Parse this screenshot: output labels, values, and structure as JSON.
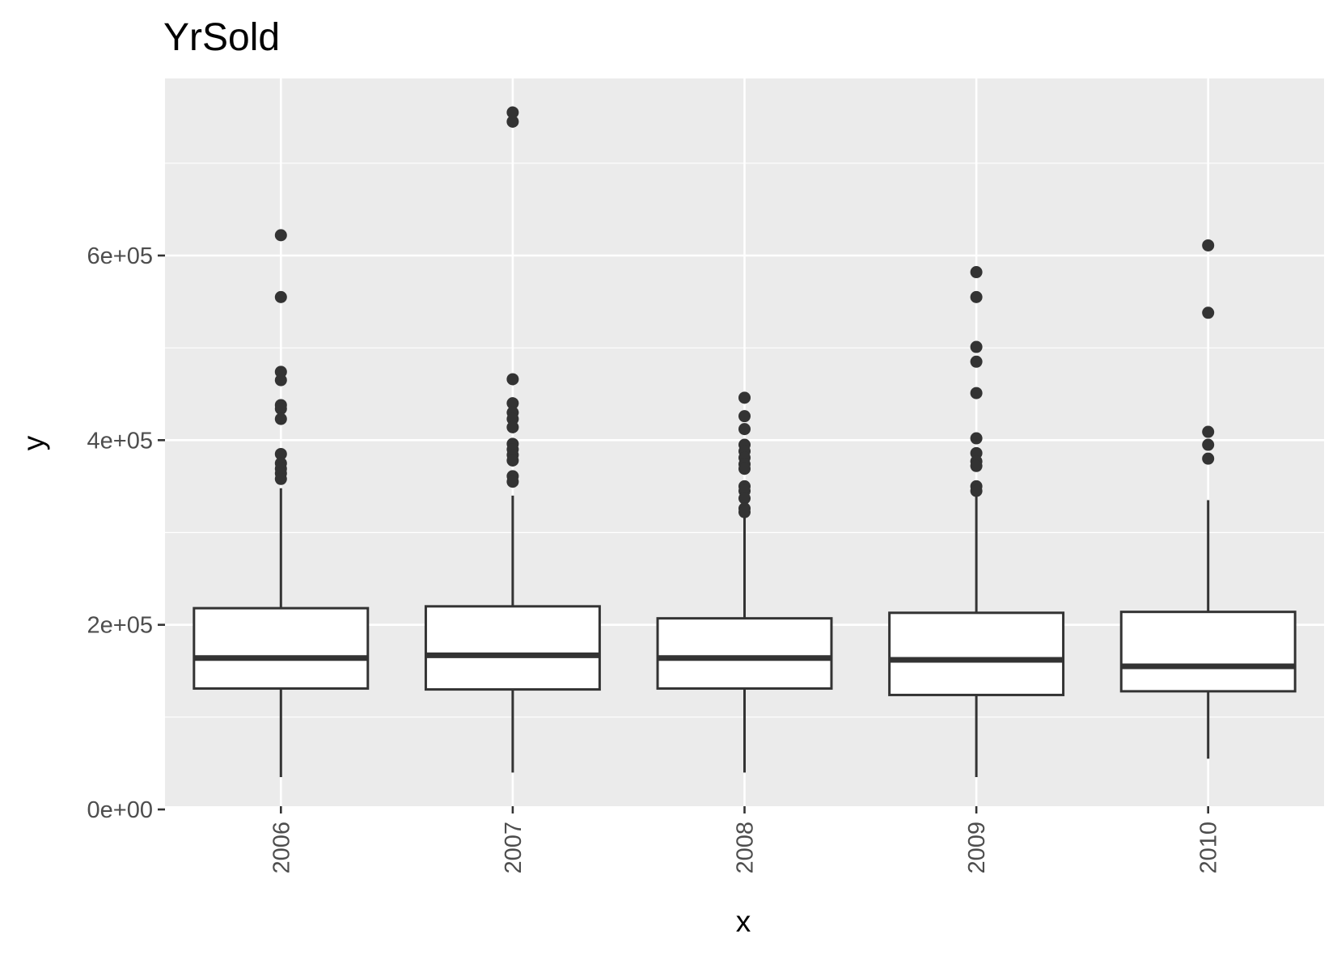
{
  "chart_data": {
    "type": "box",
    "title": "YrSold",
    "xlabel": "x",
    "ylabel": "y",
    "ylim": [
      -5000,
      790000
    ],
    "y_ticks": [
      0,
      200000,
      400000,
      600000
    ],
    "y_tick_labels": [
      "0e+00",
      "2e+05",
      "4e+05",
      "6e+05"
    ],
    "y_minor_ticks": [
      100000,
      300000,
      500000,
      700000
    ],
    "grid": true,
    "panel_background": "#ebebeb",
    "grid_color": "#ffffff",
    "box_fill": "#ffffff",
    "line_color": "#333333",
    "categories": [
      "2006",
      "2007",
      "2008",
      "2009",
      "2010"
    ],
    "boxes": [
      {
        "category": "2006",
        "whisker_low": 35000,
        "q1": 131000,
        "median": 164000,
        "q3": 218000,
        "whisker_high": 348000,
        "outliers": [
          622000,
          555000,
          474000,
          465000,
          438000,
          434000,
          423000,
          385000,
          375000,
          369000,
          364000,
          358000
        ]
      },
      {
        "category": "2007",
        "whisker_low": 40000,
        "q1": 130000,
        "median": 167000,
        "q3": 220000,
        "whisker_high": 340000,
        "outliers": [
          755000,
          745000,
          466000,
          440000,
          430000,
          423000,
          414000,
          396000,
          390000,
          384000,
          378000,
          361000,
          355000
        ]
      },
      {
        "category": "2008",
        "whisker_low": 40000,
        "q1": 131000,
        "median": 164000,
        "q3": 207000,
        "whisker_high": 316000,
        "outliers": [
          446000,
          426000,
          412000,
          395000,
          388000,
          381000,
          374000,
          369000,
          350000,
          345000,
          337000,
          326000,
          322000
        ]
      },
      {
        "category": "2009",
        "whisker_low": 35000,
        "q1": 124000,
        "median": 162000,
        "q3": 213000,
        "whisker_high": 342000,
        "outliers": [
          582000,
          555000,
          501000,
          485000,
          451000,
          402000,
          386000,
          377000,
          372000,
          350000,
          345000
        ]
      },
      {
        "category": "2010",
        "whisker_low": 55000,
        "q1": 128000,
        "median": 155000,
        "q3": 214000,
        "whisker_high": 335000,
        "outliers": [
          611000,
          538000,
          409000,
          395000,
          380000
        ]
      }
    ]
  }
}
